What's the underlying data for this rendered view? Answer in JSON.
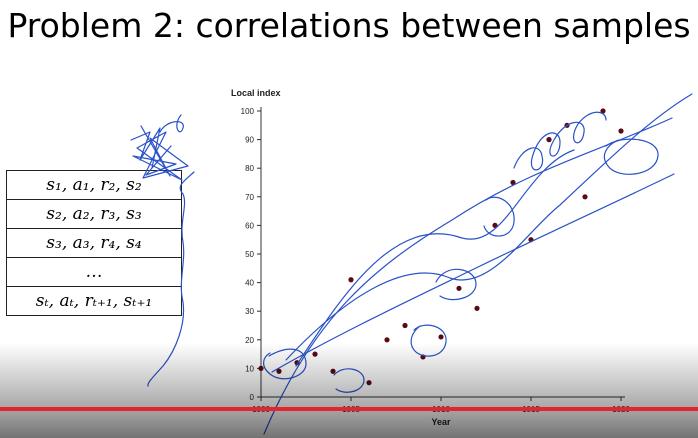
{
  "slide": {
    "title": "Problem 2: correlations between samples",
    "replay_rows": [
      "s₁, a₁, r₂, s₂",
      "s₂, a₂, r₃, s₃",
      "s₃, a₃, r₄, s₄",
      "…",
      "sₜ, aₜ, rₜ₊₁, sₜ₊₁"
    ]
  },
  "chart_data": {
    "type": "scatter",
    "ylabel": "Local index",
    "xlabel": "Year",
    "x_ticks": [
      1000,
      1005,
      1010,
      1015,
      1020
    ],
    "y_ticks": [
      0,
      10,
      20,
      30,
      40,
      50,
      60,
      70,
      80,
      90,
      100
    ],
    "xlim": [
      1000,
      1020
    ],
    "ylim": [
      0,
      100
    ],
    "points": [
      [
        1000,
        10
      ],
      [
        1001,
        9
      ],
      [
        1002,
        12
      ],
      [
        1003,
        15
      ],
      [
        1004,
        9
      ],
      [
        1005,
        41
      ],
      [
        1006,
        5
      ],
      [
        1007,
        20
      ],
      [
        1008,
        25
      ],
      [
        1009,
        14
      ],
      [
        1010,
        21
      ],
      [
        1011,
        38
      ],
      [
        1012,
        31
      ],
      [
        1013,
        60
      ],
      [
        1014,
        75
      ],
      [
        1015,
        55
      ],
      [
        1016,
        90
      ],
      [
        1017,
        95
      ],
      [
        1018,
        70
      ],
      [
        1019,
        100
      ],
      [
        1020,
        93
      ]
    ],
    "point_color": "#5a0a14",
    "ink_color": "#2a52c8"
  },
  "video": {
    "progress": 1.0,
    "progress_color": "#e3262d"
  }
}
